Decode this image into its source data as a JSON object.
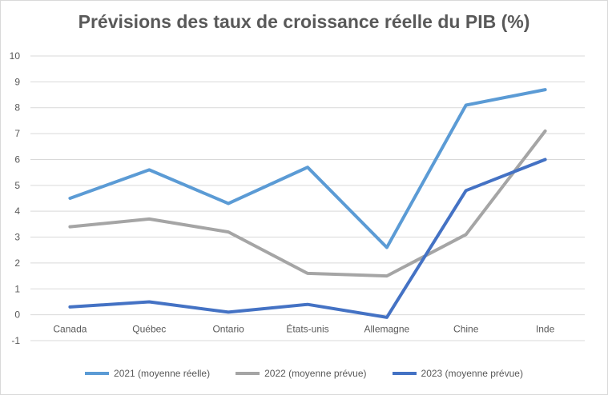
{
  "chart_data": {
    "type": "line",
    "title": "Prévisions des taux de croissance réelle du PIB (%)",
    "xlabel": "",
    "ylabel": "",
    "categories": [
      "Canada",
      "Québec",
      "Ontario",
      "États-unis",
      "Allemagne",
      "Chine",
      "Inde"
    ],
    "ylim": [
      -1,
      10
    ],
    "yticks": [
      "-1",
      "0",
      "1",
      "2",
      "3",
      "4",
      "5",
      "6",
      "7",
      "8",
      "9",
      "10"
    ],
    "grid": true,
    "legend_position": "bottom",
    "series": [
      {
        "name": "2021 (moyenne réelle)",
        "color": "#5b9bd5",
        "values": [
          4.5,
          5.6,
          4.3,
          5.7,
          2.6,
          8.1,
          8.7
        ]
      },
      {
        "name": "2022 (moyenne prévue)",
        "color": "#a5a5a5",
        "values": [
          3.4,
          3.7,
          3.2,
          1.6,
          1.5,
          3.1,
          7.1
        ]
      },
      {
        "name": "2023 (moyenne prévue)",
        "color": "#4472c4",
        "values": [
          0.3,
          0.5,
          0.1,
          0.4,
          -0.1,
          4.8,
          6.0
        ]
      }
    ]
  }
}
